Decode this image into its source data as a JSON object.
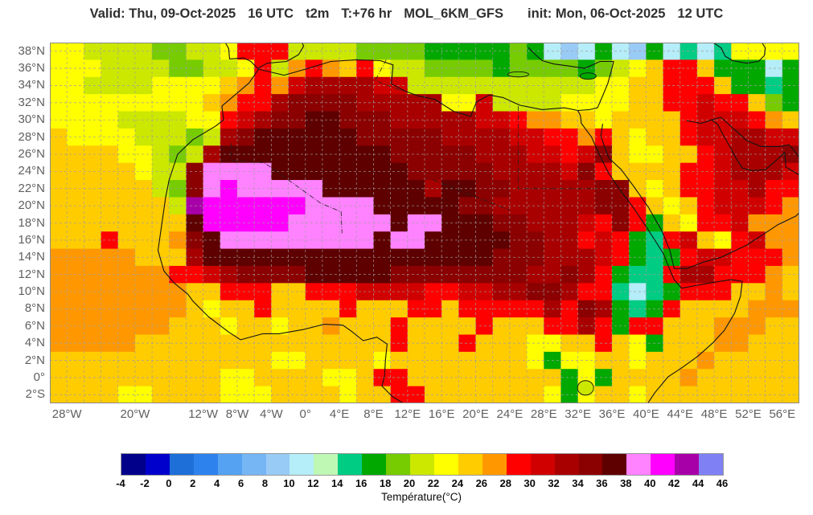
{
  "title": {
    "parts": [
      "Valid: Thu, 09-Oct-2025",
      "16 UTC",
      "t2m",
      "T:+76 hr",
      "MOL_6KM_GFS",
      "init: Mon, 06-Oct-2025",
      "12 UTC"
    ]
  },
  "map": {
    "lat_labels": [
      "38°N",
      "36°N",
      "34°N",
      "32°N",
      "30°N",
      "28°N",
      "26°N",
      "24°N",
      "22°N",
      "20°N",
      "18°N",
      "16°N",
      "14°N",
      "12°N",
      "10°N",
      "8°N",
      "6°N",
      "4°N",
      "2°N",
      "0°",
      "2°S"
    ],
    "lat_values": [
      38,
      36,
      34,
      32,
      30,
      28,
      26,
      24,
      22,
      20,
      18,
      16,
      14,
      12,
      10,
      8,
      6,
      4,
      2,
      0,
      -2
    ],
    "lon_labels": [
      "28°W",
      "20°W",
      "12°W",
      "8°W",
      "4°W",
      "0°",
      "4°E",
      "8°E",
      "12°E",
      "16°E",
      "20°E",
      "24°E",
      "28°E",
      "32°E",
      "36°E",
      "40°E",
      "44°E",
      "48°E",
      "52°E",
      "56°E"
    ],
    "lon_values": [
      -28,
      -20,
      -12,
      -8,
      -4,
      0,
      4,
      8,
      12,
      16,
      20,
      24,
      28,
      32,
      36,
      40,
      44,
      48,
      52,
      56
    ],
    "gridline_step_deg": 2
  },
  "colorbar": {
    "label": "Température(°C)",
    "ticks": [
      -4,
      -2,
      0,
      2,
      4,
      6,
      8,
      10,
      12,
      14,
      16,
      18,
      20,
      22,
      24,
      26,
      28,
      30,
      32,
      34,
      36,
      38,
      40,
      42,
      44,
      46
    ],
    "colors": [
      "#00008B",
      "#0000CD",
      "#1E6FD8",
      "#2E82EE",
      "#55A2F2",
      "#77B6F5",
      "#99CBF7",
      "#B5EDF8",
      "#BFF7B4",
      "#00CC84",
      "#00A800",
      "#76CC00",
      "#CCE800",
      "#FFFF00",
      "#FFCC00",
      "#FF9800",
      "#FF0000",
      "#D00000",
      "#A80000",
      "#8B0000",
      "#5E0000",
      "#FF82FF",
      "#FF00FF",
      "#A800A8",
      "#8080F5"
    ]
  },
  "chart_data": {
    "type": "heatmap",
    "variable": "t2m",
    "units": "°C",
    "model": "MOL_6KM_GFS",
    "valid": "Thu, 09-Oct-2025 16 UTC",
    "init": "Mon, 06-Oct-2025 12 UTC",
    "forecast_hour": "+76 hr",
    "legend_title": "Température(°C)",
    "lon_min": -30,
    "lon_max": 58,
    "lat_min": -3,
    "lat_max": 39,
    "cell_deg": 2,
    "bins_start": [
      -4,
      -2,
      0,
      2,
      4,
      6,
      8,
      10,
      12,
      14,
      16,
      18,
      20,
      22,
      24,
      26,
      28,
      30,
      32,
      34,
      36,
      38,
      40,
      42,
      44
    ],
    "encoding": "one char per 2-degree cell, west to east; 'a' = -4..-2 °C bin, 'b' = -2..0, ... 'y' = 44..46; rows run north (39N) to south (3S)",
    "rows_north_to_south": [
      "nnmmmmllmmnqqqmmmmllllkkkkklkhghkhgkhjhjnnnn",
      "nnnmmmmllmmnqmpqpoqnmmllllkllllklmnoqqokkkhk",
      "nnmmmmnnnnopqprssssrrmmmmmmmmmmmnnooqqqokkjk",
      "nnnnnnnnnopqqsttttsssssnnrmmmmnnnnooqqrqqolk",
      "nnnnmmmmnnqrsttuutttsssssrrqppoonooooqrrrqpo",
      "onnnnmmmlmstuuuuuutttttssssrrqqpqonooqrrssrr",
      "oooonnmlmsuuuuuuuuuutttttsssrrqrtonnooqrssst",
      "ooooonmmtvvvvuuuuuuuutttttssssrtqooooqqrsssr",
      "oooooomltvwvvvvvuuuuuusuuttsssssttonoqqrrsqq",
      "ooooooomxwwwwwwvvvvuuuuuttssssssttqonoqrrrqp",
      "oooooooouwwwwwvvvvvvuvvuuuttsssrqtqkonqqrppp",
      "oooqoooptuvvvvvvvvvuvvuuuuuttssqrqkjqronqrpp",
      "pppppooosuuuuuuuuuuuuuuuuutttsssrqkjkqrrqqqp",
      "pppppppqqrsttttuuuuuttttttttsstsqkjjqssqqqpo",
      "ppppppppooqqqooqqqrrrrqqrrssttsqqjhjkqqqoopo",
      "pppppppponooqooooqoooqqoqqqqqsqtskjkqooooppp",
      "pppppppooonoonoopoooqooooqoooqqsqkqqooopppoo",
      "pppppoooooooooooooooqoooqooonnooqonkoooppooo",
      "ooooooooooooonnoooonoooooooonknnoonooopooooo",
      "oooooooooonnoooonnoqqoooooooooknkoooopoooooo",
      "oooonnoooonnnoooonooqqooooooonknoonooooooooo"
    ]
  }
}
